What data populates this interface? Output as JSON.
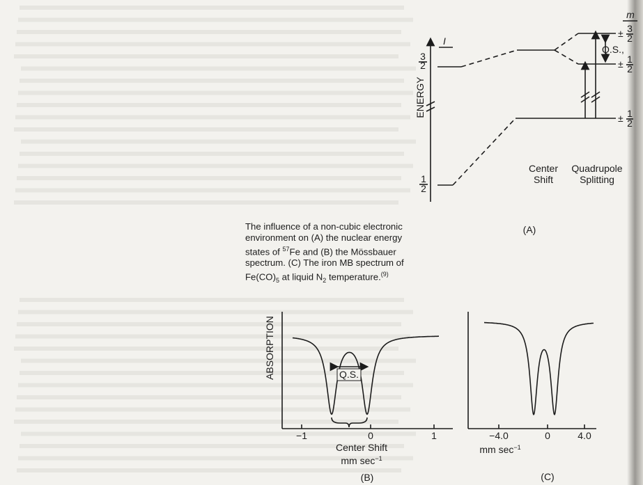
{
  "caption": [
    "The influence of a non-cubic electronic environment on (A) the nuclear energy states of ",
    "57",
    "Fe and (B) the Mössbauer spectrum. (C) The iron MB spectrum of Fe(CO)",
    "5",
    " at liquid N",
    "2",
    " temperature.",
    "(9)"
  ],
  "panel_a": {
    "axis_label": "ENERGY",
    "i_label": "I",
    "m_label": "m",
    "upper_level": {
      "num": "3",
      "den": "2"
    },
    "lower_level": {
      "num": "1",
      "den": "2"
    },
    "sublevels": [
      {
        "sign": "±",
        "num": "3",
        "den": "2"
      },
      {
        "sign": "±",
        "num": "1",
        "den": "2"
      },
      {
        "sign": "±",
        "num": "1",
        "den": "2"
      }
    ],
    "qs_label": "Q.S.,",
    "center_shift": [
      "Center",
      "Shift"
    ],
    "quadrupole_splitting": [
      "Quadrupole",
      "Splitting"
    ],
    "panel_label": "(A)"
  },
  "panel_b": {
    "y_label": "ABSORPTION",
    "qs_label": "Q.S.",
    "ticks": [
      "−1",
      "0",
      "1"
    ],
    "center_shift": "Center Shift",
    "unit": "mm sec",
    "unit_exp": "−1",
    "panel_label": "(B)"
  },
  "panel_c": {
    "ticks": [
      "−4.0",
      "0",
      "4.0"
    ],
    "unit": "mm sec",
    "unit_exp": "−1",
    "panel_label": "(C)"
  }
}
